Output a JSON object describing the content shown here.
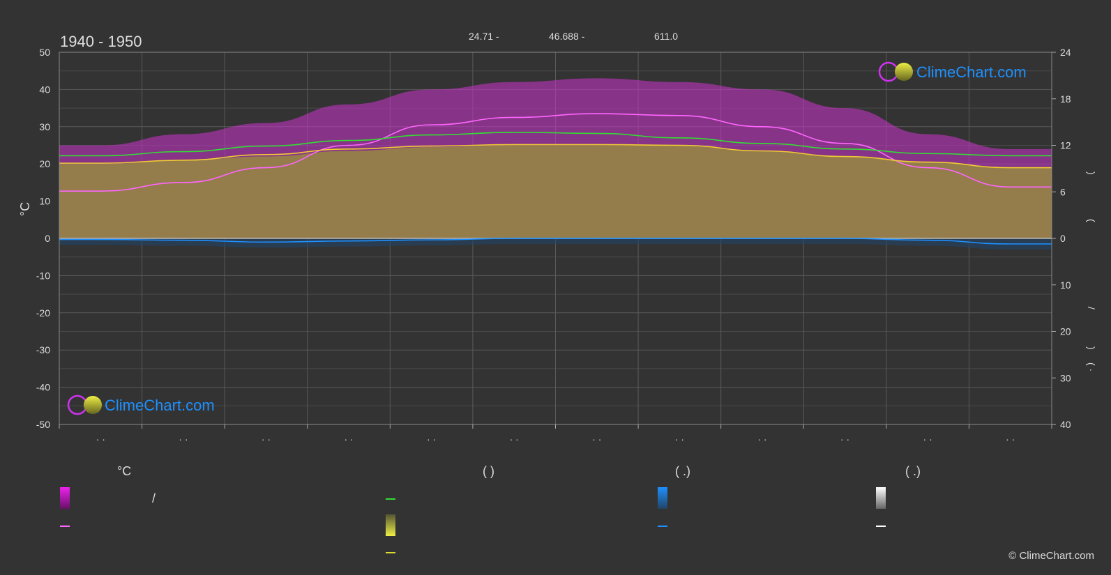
{
  "chart_data": {
    "type": "area",
    "title": "1940 - 1950",
    "header_values": [
      "24.71 -",
      "46.688 -",
      "611.0"
    ],
    "ylabel_left": "°C",
    "ylim_left": [
      -50,
      50
    ],
    "yticks_left": [
      "50",
      "40",
      "30",
      "20",
      "10",
      "0",
      "-10",
      "-20",
      "-30",
      "-40",
      "-50"
    ],
    "yticks_right_top": [
      "24",
      "18",
      "12",
      "6",
      "0"
    ],
    "yticks_right_bottom": [
      "10",
      "20",
      "30",
      "40"
    ],
    "right_axis_glyphs": [
      ")",
      "(",
      "/",
      ")",
      "( ·"
    ],
    "x_tick_labels": [
      "· ·",
      "· ·",
      "· ·",
      "· ·",
      "· ·",
      "· ·",
      "· ·",
      "· ·",
      "· ·",
      "· ·",
      "· ·",
      "· ·"
    ],
    "months": 12,
    "grid": true,
    "series": [
      {
        "color": "#ff66ff",
        "values": [
          12.7,
          15.0,
          19.0,
          25.0,
          30.5,
          32.5,
          33.5,
          33.0,
          30.0,
          25.5,
          19.0,
          13.8
        ]
      },
      {
        "color": "#33dd33",
        "values": [
          22.2,
          23.3,
          24.8,
          26.3,
          27.8,
          28.5,
          28.2,
          27.0,
          25.5,
          24.0,
          22.8,
          22.2
        ]
      },
      {
        "color": "#eecc33",
        "values": [
          20.2,
          21.0,
          22.5,
          24.0,
          24.8,
          25.2,
          25.2,
          25.0,
          23.5,
          22.0,
          20.5,
          19.0
        ]
      },
      {
        "color": "#1e90ff",
        "values": [
          -0.3,
          -0.5,
          -1.0,
          -0.7,
          -0.4,
          0.0,
          0.0,
          0.0,
          0.0,
          0.0,
          -0.5,
          -1.5
        ]
      }
    ],
    "bands": [
      {
        "color": "#cc33cc",
        "values": [
          25,
          28,
          31,
          36,
          40,
          42,
          43,
          42,
          40,
          35,
          28,
          24
        ]
      },
      {
        "color": "#cc6699",
        "values": [
          20,
          21,
          22,
          23.5,
          24.5,
          25,
          25,
          25,
          23.5,
          22,
          20.5,
          19
        ]
      },
      {
        "color": "#888833",
        "values": [
          20,
          21,
          22,
          23.5,
          24.5,
          25,
          25,
          25,
          23.5,
          22,
          20.5,
          19
        ]
      }
    ]
  },
  "legend": {
    "col1_header": "°C",
    "col1_items": [
      "/"
    ],
    "col2_header": "(            )",
    "col3_header": "(    .)",
    "col4_header": "(    .)",
    "colors": {
      "range": "#ee22ee",
      "mean": "#ff66ff",
      "daylight": "#33dd33",
      "sunshine": "#eeee44",
      "sun_line": "#dddd33",
      "rain": "#1e90ff",
      "snow": "#ffffff"
    }
  },
  "logo_text": "ClimeChart.com",
  "copyright": "© ClimeChart.com"
}
